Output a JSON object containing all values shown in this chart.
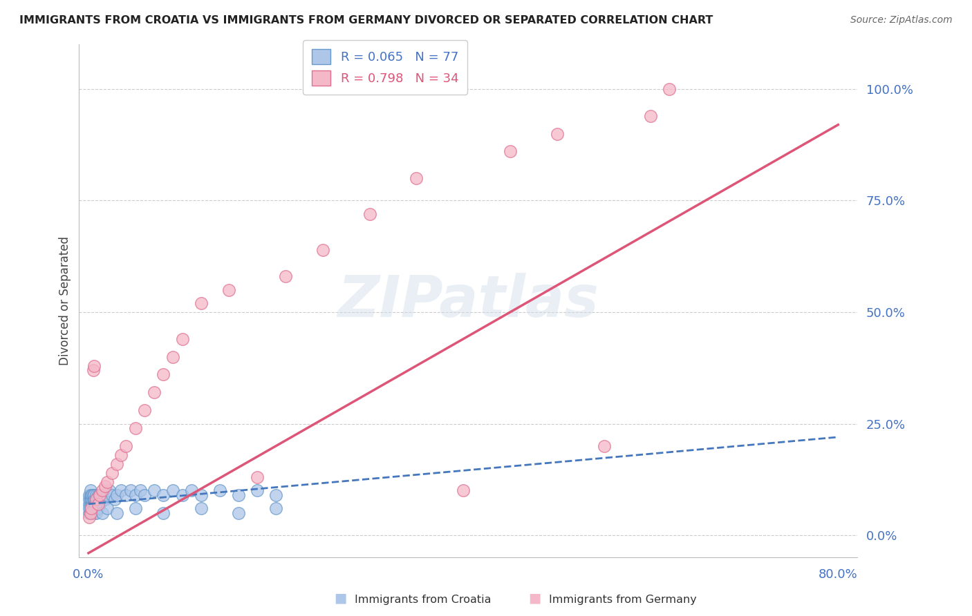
{
  "title": "IMMIGRANTS FROM CROATIA VS IMMIGRANTS FROM GERMANY DIVORCED OR SEPARATED CORRELATION CHART",
  "source": "Source: ZipAtlas.com",
  "ylabel": "Divorced or Separated",
  "xlim": [
    -0.01,
    0.82
  ],
  "ylim": [
    -0.05,
    1.1
  ],
  "ytick_values": [
    0.0,
    0.25,
    0.5,
    0.75,
    1.0
  ],
  "croatia_color": "#aec6e8",
  "croatia_edge": "#6699cc",
  "germany_color": "#f4b8c8",
  "germany_edge": "#e07090",
  "trend_croatia_color": "#4477bb",
  "trend_germany_color": "#dd5577",
  "legend_R_croatia": "R = 0.065",
  "legend_N_croatia": "N = 77",
  "legend_R_germany": "R = 0.798",
  "legend_N_germany": "N = 34",
  "watermark": "ZIPatlas",
  "croatia_x": [
    0.001,
    0.001,
    0.001,
    0.002,
    0.002,
    0.002,
    0.002,
    0.003,
    0.003,
    0.003,
    0.003,
    0.004,
    0.004,
    0.004,
    0.005,
    0.005,
    0.005,
    0.006,
    0.006,
    0.006,
    0.007,
    0.007,
    0.008,
    0.008,
    0.008,
    0.009,
    0.009,
    0.01,
    0.01,
    0.011,
    0.012,
    0.012,
    0.013,
    0.014,
    0.015,
    0.016,
    0.018,
    0.02,
    0.022,
    0.025,
    0.028,
    0.03,
    0.035,
    0.04,
    0.045,
    0.05,
    0.055,
    0.06,
    0.07,
    0.08,
    0.09,
    0.1,
    0.11,
    0.12,
    0.14,
    0.16,
    0.18,
    0.2,
    0.001,
    0.001,
    0.002,
    0.002,
    0.003,
    0.004,
    0.005,
    0.006,
    0.007,
    0.008,
    0.01,
    0.015,
    0.02,
    0.03,
    0.05,
    0.08,
    0.12,
    0.16,
    0.2
  ],
  "croatia_y": [
    0.07,
    0.08,
    0.09,
    0.07,
    0.08,
    0.09,
    0.1,
    0.06,
    0.07,
    0.08,
    0.09,
    0.07,
    0.08,
    0.09,
    0.07,
    0.08,
    0.09,
    0.07,
    0.08,
    0.09,
    0.07,
    0.08,
    0.07,
    0.08,
    0.09,
    0.07,
    0.08,
    0.07,
    0.09,
    0.08,
    0.07,
    0.09,
    0.08,
    0.09,
    0.08,
    0.09,
    0.08,
    0.09,
    0.1,
    0.09,
    0.08,
    0.09,
    0.1,
    0.09,
    0.1,
    0.09,
    0.1,
    0.09,
    0.1,
    0.09,
    0.1,
    0.09,
    0.1,
    0.09,
    0.1,
    0.09,
    0.1,
    0.09,
    0.05,
    0.06,
    0.05,
    0.06,
    0.05,
    0.05,
    0.06,
    0.05,
    0.06,
    0.05,
    0.06,
    0.05,
    0.06,
    0.05,
    0.06,
    0.05,
    0.06,
    0.05,
    0.06
  ],
  "germany_x": [
    0.001,
    0.002,
    0.003,
    0.005,
    0.006,
    0.008,
    0.01,
    0.012,
    0.015,
    0.018,
    0.02,
    0.025,
    0.03,
    0.035,
    0.04,
    0.05,
    0.06,
    0.07,
    0.08,
    0.09,
    0.1,
    0.12,
    0.15,
    0.18,
    0.21,
    0.25,
    0.3,
    0.35,
    0.4,
    0.45,
    0.5,
    0.55,
    0.6,
    0.62
  ],
  "germany_y": [
    0.04,
    0.05,
    0.06,
    0.37,
    0.38,
    0.08,
    0.07,
    0.09,
    0.1,
    0.11,
    0.12,
    0.14,
    0.16,
    0.18,
    0.2,
    0.24,
    0.28,
    0.32,
    0.36,
    0.4,
    0.44,
    0.52,
    0.55,
    0.13,
    0.58,
    0.64,
    0.72,
    0.8,
    0.1,
    0.86,
    0.9,
    0.2,
    0.94,
    1.0
  ]
}
